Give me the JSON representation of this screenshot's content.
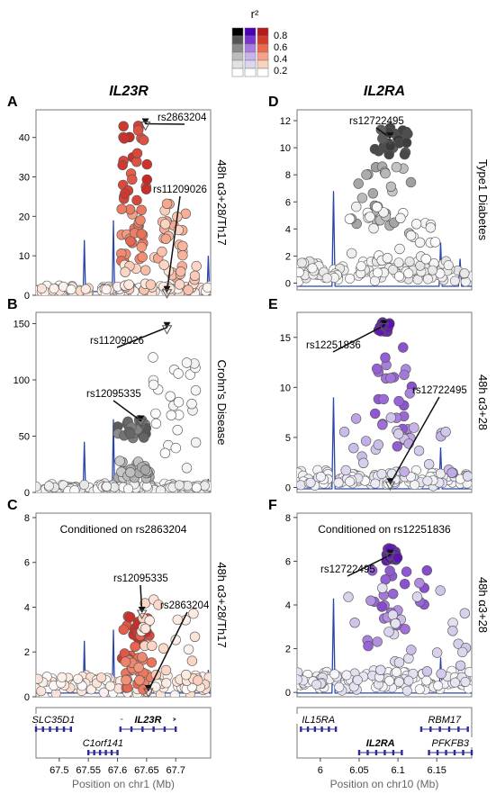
{
  "legend": {
    "title": "r²",
    "labels": [
      "0.8",
      "0.6",
      "0.4",
      "0.2"
    ],
    "columns": [
      [
        "#000000",
        "#555555",
        "#8a8a8a",
        "#bdbdbd",
        "#e2e2e2",
        "#ffffff"
      ],
      [
        "#4b00b8",
        "#7a33d1",
        "#a77de0",
        "#c9b3ec",
        "#dcd6ee",
        "#ffffff"
      ],
      [
        "#b71c1c",
        "#d63a2b",
        "#ee6a4d",
        "#f7a288",
        "#fbd1c0",
        "#ffffff"
      ]
    ]
  },
  "columns": {
    "left_title": "IL23R",
    "right_title": "IL2RA"
  },
  "chart_data": [
    {
      "id": "A",
      "type": "scatter",
      "panel_letter": "A",
      "side_label": "48h α3+28/Th17",
      "condition_text": "",
      "color_scheme": "red",
      "xlim": [
        67.46,
        67.76
      ],
      "ylim": [
        0,
        47
      ],
      "yticks": [
        0,
        10,
        20,
        30,
        40
      ],
      "annotations": [
        {
          "label": "rs2863204",
          "x": 67.648,
          "y": 43
        },
        {
          "label": "rs11209026",
          "x": 67.685,
          "y": 0.5
        }
      ],
      "spikes": [
        {
          "x": 67.543,
          "y": 14
        },
        {
          "x": 67.593,
          "y": 19
        },
        {
          "x": 67.756,
          "y": 10
        }
      ],
      "background": {
        "x_range": [
          67.46,
          67.76
        ],
        "y_max": 3,
        "y_typical": 1.5
      },
      "clusters": [
        {
          "x_range": [
            67.605,
            67.655
          ],
          "y_range": [
            22,
            44
          ],
          "r2": [
            0.6,
            0.8
          ]
        },
        {
          "x_range": [
            67.605,
            67.645
          ],
          "y_range": [
            8,
            22
          ],
          "r2": [
            0.4,
            0.6
          ]
        },
        {
          "x_range": [
            67.655,
            67.72
          ],
          "y_range": [
            3,
            24
          ],
          "r2": [
            0.2,
            0.4
          ]
        },
        {
          "x_range": [
            67.61,
            67.74
          ],
          "y_range": [
            1,
            8
          ],
          "r2": [
            0.1,
            0.3
          ]
        }
      ]
    },
    {
      "id": "B",
      "type": "scatter",
      "panel_letter": "B",
      "side_label": "Crohn's Disease",
      "condition_text": "",
      "color_scheme": "grey",
      "xlim": [
        67.46,
        67.76
      ],
      "ylim": [
        0,
        160
      ],
      "yticks": [
        0,
        50,
        100,
        150
      ],
      "annotations": [
        {
          "label": "rs11209026",
          "x": 67.685,
          "y": 145
        },
        {
          "label": "rs12095335",
          "x": 67.64,
          "y": 62
        }
      ],
      "spikes": [
        {
          "x": 67.543,
          "y": 45
        },
        {
          "x": 67.593,
          "y": 65
        },
        {
          "x": 67.756,
          "y": 12
        }
      ],
      "background": {
        "x_range": [
          67.46,
          67.76
        ],
        "y_max": 10,
        "y_typical": 5
      },
      "clusters": [
        {
          "x_range": [
            67.6,
            67.65
          ],
          "y_range": [
            45,
            65
          ],
          "r2": [
            0.6,
            0.8
          ]
        },
        {
          "x_range": [
            67.6,
            67.66
          ],
          "y_range": [
            12,
            28
          ],
          "r2": [
            0.3,
            0.5
          ]
        },
        {
          "x_range": [
            67.66,
            67.74
          ],
          "y_range": [
            15,
            120
          ],
          "r2": [
            0.0,
            0.1
          ]
        }
      ]
    },
    {
      "id": "C",
      "type": "scatter",
      "panel_letter": "C",
      "side_label": "48h α3+28/Th17",
      "condition_text": "Conditioned on rs2863204",
      "color_scheme": "red",
      "xlim": [
        67.46,
        67.76
      ],
      "ylim": [
        0,
        8.2
      ],
      "yticks": [
        0,
        2,
        4,
        6,
        8
      ],
      "annotations": [
        {
          "label": "rs12095335",
          "x": 67.642,
          "y": 3.7
        },
        {
          "label": "rs2863204",
          "x": 67.653,
          "y": 0.2
        }
      ],
      "spikes": [
        {
          "x": 67.543,
          "y": 2.5
        },
        {
          "x": 67.593,
          "y": 3.0
        },
        {
          "x": 67.756,
          "y": 1.2
        }
      ],
      "background": {
        "x_range": [
          67.46,
          67.76
        ],
        "y_max": 1.3,
        "y_typical": 0.6
      },
      "clusters": [
        {
          "x_range": [
            67.605,
            67.655
          ],
          "y_range": [
            1.5,
            3.7
          ],
          "r2": [
            0.6,
            0.8
          ]
        },
        {
          "x_range": [
            67.61,
            67.66
          ],
          "y_range": [
            0.3,
            1.8
          ],
          "r2": [
            0.4,
            0.6
          ]
        },
        {
          "x_range": [
            67.64,
            67.74
          ],
          "y_range": [
            0.5,
            4.8
          ],
          "r2": [
            0.05,
            0.25
          ]
        }
      ]
    },
    {
      "id": "D",
      "type": "scatter",
      "panel_letter": "D",
      "side_label": "Type1 Diabetes",
      "condition_text": "",
      "color_scheme": "grey",
      "xlim": [
        5.97,
        6.195
      ],
      "ylim": [
        -0.5,
        12.8
      ],
      "yticks": [
        0,
        2,
        4,
        6,
        8,
        10,
        12
      ],
      "annotations": [
        {
          "label": "rs12722495",
          "x": 6.09,
          "y": 10.6
        }
      ],
      "spikes": [
        {
          "x": 6.017,
          "y": 6.8
        },
        {
          "x": 6.155,
          "y": 3.0
        },
        {
          "x": 6.18,
          "y": 1.8
        }
      ],
      "background": {
        "x_range": [
          5.97,
          6.195
        ],
        "y_max": 2.5,
        "y_typical": 1.0
      },
      "clusters": [
        {
          "x_range": [
            6.07,
            6.115
          ],
          "y_range": [
            9.5,
            11.5
          ],
          "r2": [
            0.75,
            0.9
          ]
        },
        {
          "x_range": [
            6.04,
            6.12
          ],
          "y_range": [
            3.5,
            9
          ],
          "r2": [
            0.35,
            0.55
          ]
        },
        {
          "x_range": [
            6.03,
            6.15
          ],
          "y_range": [
            1.5,
            6
          ],
          "r2": [
            0.0,
            0.12
          ]
        }
      ]
    },
    {
      "id": "E",
      "type": "scatter",
      "panel_letter": "E",
      "side_label": "48h α3+28",
      "condition_text": "",
      "color_scheme": "purple",
      "xlim": [
        5.97,
        6.195
      ],
      "ylim": [
        -0.5,
        17.5
      ],
      "yticks": [
        0,
        5,
        10,
        15
      ],
      "annotations": [
        {
          "label": "rs12251836",
          "x": 6.082,
          "y": 16
        },
        {
          "label": "rs12722495",
          "x": 6.09,
          "y": 0.2
        }
      ],
      "spikes": [
        {
          "x": 6.017,
          "y": 9
        },
        {
          "x": 6.155,
          "y": 4
        }
      ],
      "background": {
        "x_range": [
          5.97,
          6.195
        ],
        "y_max": 2.5,
        "y_typical": 1.0
      },
      "clusters": [
        {
          "x_range": [
            6.075,
            6.09
          ],
          "y_range": [
            15.5,
            16.5
          ],
          "r2": [
            0.85,
            0.95
          ]
        },
        {
          "x_range": [
            6.07,
            6.12
          ],
          "y_range": [
            4,
            14
          ],
          "r2": [
            0.5,
            0.75
          ]
        },
        {
          "x_range": [
            6.03,
            6.19
          ],
          "y_range": [
            1,
            7
          ],
          "r2": [
            0.2,
            0.45
          ]
        }
      ]
    },
    {
      "id": "F",
      "type": "scatter",
      "panel_letter": "F",
      "side_label": "48h α3+28",
      "condition_text": "Conditioned on rs12251836",
      "color_scheme": "purple",
      "xlim": [
        5.97,
        6.195
      ],
      "ylim": [
        -0.2,
        8.2
      ],
      "yticks": [
        0,
        2,
        4,
        6,
        8
      ],
      "annotations": [
        {
          "label": "rs12722495",
          "x": 6.09,
          "y": 6.2
        }
      ],
      "spikes": [
        {
          "x": 6.017,
          "y": 4.3
        },
        {
          "x": 6.155,
          "y": 1.6
        }
      ],
      "background": {
        "x_range": [
          5.97,
          6.195
        ],
        "y_max": 1.4,
        "y_typical": 0.6
      },
      "clusters": [
        {
          "x_range": [
            6.085,
            6.1
          ],
          "y_range": [
            6.0,
            6.6
          ],
          "r2": [
            0.85,
            0.95
          ]
        },
        {
          "x_range": [
            6.05,
            6.14
          ],
          "y_range": [
            2,
            5.6
          ],
          "r2": [
            0.5,
            0.75
          ]
        },
        {
          "x_range": [
            6.03,
            6.19
          ],
          "y_range": [
            0.8,
            4.8
          ],
          "r2": [
            0.15,
            0.35
          ]
        }
      ]
    }
  ],
  "genes": {
    "left": {
      "xlabel": "Position on chr1 (Mb)",
      "xlim": [
        67.46,
        67.76
      ],
      "xticks": [
        "67.5",
        "67.55",
        "67.6",
        "67.65",
        "67.7"
      ],
      "xtick_values": [
        67.5,
        67.55,
        67.6,
        67.65,
        67.7
      ],
      "items": [
        {
          "name": "SLC35D1",
          "start": 67.46,
          "end": 67.52,
          "row": 0,
          "dir": "left",
          "bold": false
        },
        {
          "name": "IL23R",
          "start": 67.605,
          "end": 67.7,
          "row": 0,
          "dir": "right",
          "bold": true
        },
        {
          "name": "C1orf141",
          "start": 67.55,
          "end": 67.6,
          "row": 1,
          "dir": "left",
          "bold": false
        }
      ]
    },
    "right": {
      "xlabel": "Position on chr10 (Mb)",
      "xlim": [
        5.97,
        6.195
      ],
      "xticks": [
        "6",
        "6.05",
        "6.1",
        "6.15"
      ],
      "xtick_values": [
        6.0,
        6.05,
        6.1,
        6.15
      ],
      "items": [
        {
          "name": "IL15RA",
          "start": 5.975,
          "end": 6.02,
          "row": 0,
          "dir": "left",
          "bold": false
        },
        {
          "name": "RBM17",
          "start": 6.13,
          "end": 6.19,
          "row": 0,
          "dir": "right",
          "bold": false
        },
        {
          "name": "IL2RA",
          "start": 6.05,
          "end": 6.105,
          "row": 1,
          "dir": "left",
          "bold": true
        },
        {
          "name": "PFKFB3",
          "start": 6.14,
          "end": 6.195,
          "row": 1,
          "dir": "right",
          "bold": false
        }
      ]
    }
  }
}
